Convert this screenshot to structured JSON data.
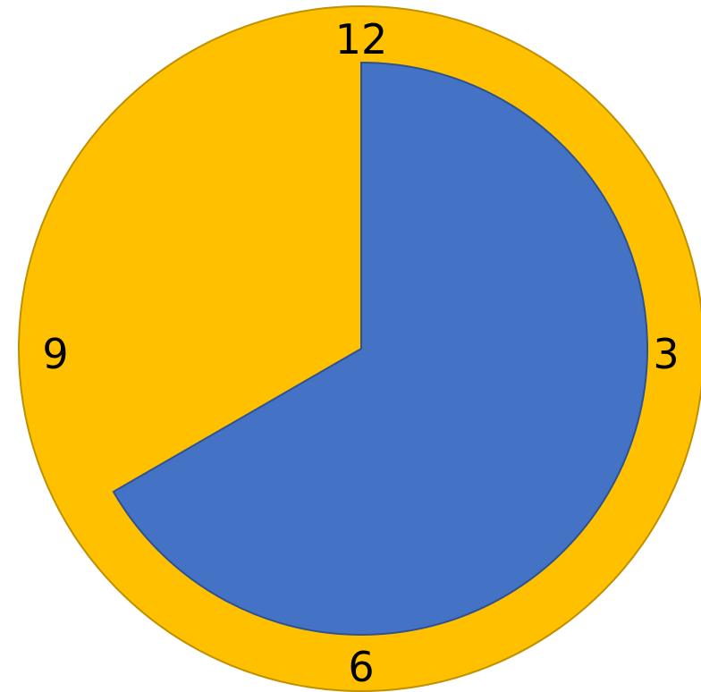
{
  "clock": {
    "labels": {
      "twelve": "12",
      "three": "3",
      "six": "6",
      "nine": "9"
    },
    "filled_sector": {
      "start_hour": 12,
      "end_hour": 8,
      "direction": "clockwise"
    },
    "colors": {
      "face": "#FFC000",
      "face_outline": "#BF9000",
      "sector": "#4472C4",
      "sector_outline": "#2F528F"
    }
  }
}
